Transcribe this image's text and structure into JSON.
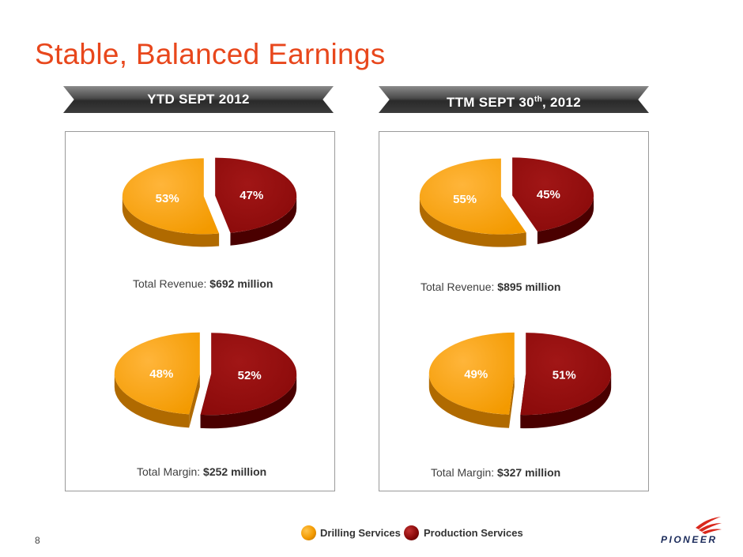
{
  "title": "Stable, Balanced Earnings",
  "left_header": "YTD SEPT 2012",
  "right_header_main": "TTM SEPT 30",
  "right_header_sup": "th",
  "right_header_tail": ", 2012",
  "colors": {
    "drilling": "#f39a00",
    "drilling_dark": "#b06a00",
    "production": "#8a0a0a",
    "production_dark": "#4a0000",
    "title": "#e8471c"
  },
  "chart_data": [
    {
      "type": "pie",
      "panel": "YTD SEPT 2012",
      "metric": "Total Revenue",
      "slices": [
        {
          "name": "Drilling Services",
          "value": 53,
          "label": "53%"
        },
        {
          "name": "Production Services",
          "value": 47,
          "label": "47%"
        }
      ],
      "caption_prefix": "Total Revenue: ",
      "caption_value": "$692 million"
    },
    {
      "type": "pie",
      "panel": "YTD SEPT 2012",
      "metric": "Total Margin",
      "slices": [
        {
          "name": "Drilling Services",
          "value": 48,
          "label": "48%"
        },
        {
          "name": "Production Services",
          "value": 52,
          "label": "52%"
        }
      ],
      "caption_prefix": "Total Margin: ",
      "caption_value": "$252 million"
    },
    {
      "type": "pie",
      "panel": "TTM SEPT 30th, 2012",
      "metric": "Total Revenue",
      "slices": [
        {
          "name": "Drilling Services",
          "value": 55,
          "label": "55%"
        },
        {
          "name": "Production Services",
          "value": 45,
          "label": "45%"
        }
      ],
      "caption_prefix": "Total Revenue: ",
      "caption_value": "$895 million"
    },
    {
      "type": "pie",
      "panel": "TTM SEPT 30th, 2012",
      "metric": "Total Margin",
      "slices": [
        {
          "name": "Drilling Services",
          "value": 49,
          "label": "49%"
        },
        {
          "name": "Production Services",
          "value": 51,
          "label": "51%"
        }
      ],
      "caption_prefix": "Total Margin: ",
      "caption_value": "$327 million"
    }
  ],
  "legend": [
    {
      "name": "Drilling Services"
    },
    {
      "name": "Production Services"
    }
  ],
  "page_number": "8",
  "logo_text": "PIONEER"
}
